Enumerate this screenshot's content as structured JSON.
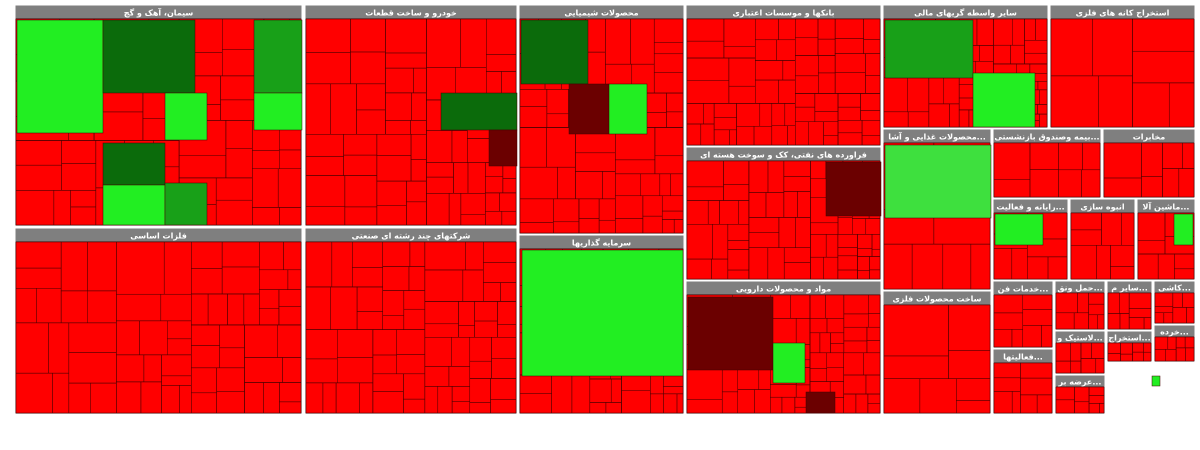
{
  "sectors": [
    {
      "title": "سیمان، آهک و گچ"
    },
    {
      "title": "خودرو و ساخت قطعات"
    },
    {
      "title": "محصولات شیمیایی"
    },
    {
      "title": "بانکها و موسسات اعتباری"
    },
    {
      "title": "سایر واسطه گریهای مالی"
    },
    {
      "title": "استخراج کانه های فلزی"
    },
    {
      "title": "فلزات اساسی"
    },
    {
      "title": "شرکتهای چند رشته ای صنعتی"
    },
    {
      "title": "سرمایه گذاریها"
    },
    {
      "title": "فراورده های نفتی، کک و سوخت هسته ای"
    },
    {
      "title": "مواد و محصولات دارویی"
    },
    {
      "title": "محصولات غذایی و آشا..."
    },
    {
      "title": "بیمه وصندوق بازنشستی..."
    },
    {
      "title": "مخابرات"
    },
    {
      "title": "ساخت محصولات فلزی"
    },
    {
      "title": "رایانه و فعالیت..."
    },
    {
      "title": "انبوه سازی"
    },
    {
      "title": "ماشین آلا..."
    },
    {
      "title": "خدمات فن..."
    },
    {
      "title": "حمل ونق..."
    },
    {
      "title": "سایر م..."
    },
    {
      "title": "کاشی..."
    },
    {
      "title": "فعالیتها..."
    },
    {
      "title": "لاستیک و..."
    },
    {
      "title": "استخراج..."
    },
    {
      "title": "خرده..."
    },
    {
      "title": "عرضه بر..."
    }
  ]
}
